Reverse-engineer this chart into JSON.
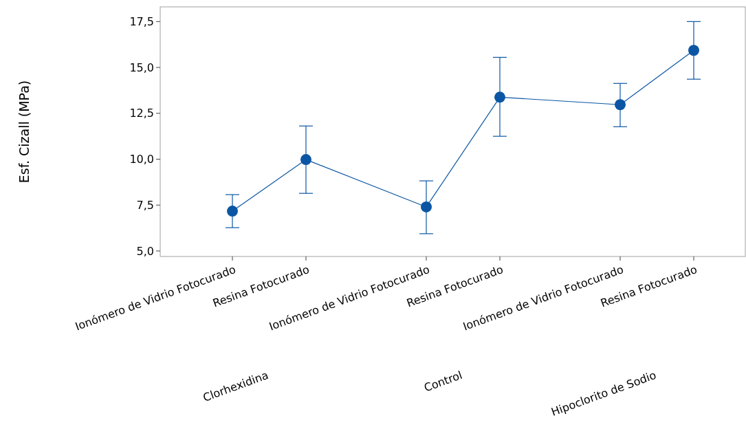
{
  "chart_data": {
    "type": "line",
    "ylabel": "Esf. Cizall (MPa)",
    "categories": [
      "Ionómero de Vidrio Fotocurado",
      "Resina Fotocurado",
      "Ionómero de Vidrio Fotocurado",
      "Resina Fotocurado",
      "Ionómero de Vidrio Fotocurado",
      "Resina Fotocurado"
    ],
    "series": [
      {
        "color": "#0b56a4",
        "values": [
          7.17,
          9.98,
          7.4,
          13.38,
          12.97,
          15.93
        ],
        "errors": [
          [
            6.27,
            8.07
          ],
          [
            8.14,
            11.81
          ],
          [
            5.94,
            8.82
          ],
          [
            11.25,
            15.55
          ],
          [
            11.77,
            14.13
          ],
          [
            14.36,
            17.5
          ]
        ]
      }
    ],
    "annotations": [
      "Clorhexidina",
      "Control",
      "Hipoclorito de Sodio"
    ],
    "ylim": [
      4.7,
      18.3
    ],
    "yticks": [
      {
        "value": 5,
        "label": "5,0"
      },
      {
        "value": 7.5,
        "label": "7,5"
      },
      {
        "value": 10,
        "label": "10,0"
      },
      {
        "value": 12.5,
        "label": "12,5"
      },
      {
        "value": 15,
        "label": "15,0"
      },
      {
        "value": 17.5,
        "label": "17,5"
      }
    ],
    "grid": false,
    "marker": "circle",
    "line_style": "solid"
  }
}
